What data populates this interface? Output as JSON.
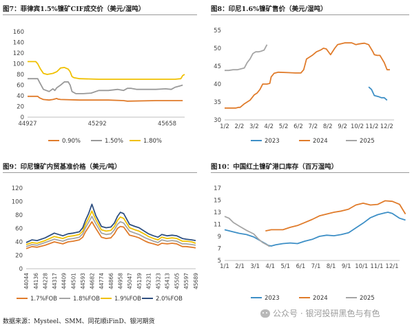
{
  "panels": [
    {
      "title": "图7：菲律宾1.5%镍矿CIF成交价（美元/湿吨）",
      "chart_data": {
        "type": "line",
        "y_ticks": [
          "160",
          "140",
          "120",
          "100",
          "80",
          "60",
          "40",
          "20",
          "0"
        ],
        "x_ticks": [
          "44927",
          "45292",
          "45658"
        ],
        "ylim": [
          0,
          160
        ],
        "xlim": [
          44927,
          45750
        ],
        "series": [
          {
            "name": "0.90%",
            "color": "#E07B2A",
            "x": [
              44927,
              44980,
              44990,
              45010,
              45040,
              45060,
              45080,
              45085,
              45100,
              45200,
              45300,
              45350,
              45430,
              45450,
              45600,
              45700,
              45740
            ],
            "y": [
              39,
              39,
              36,
              33,
              32,
              33,
              35,
              34,
              33,
              32,
              32,
              32,
              31,
              30,
              31,
              31,
              31
            ]
          },
          {
            "name": "1.50%",
            "color": "#999999",
            "x": [
              44927,
              44980,
              44990,
              45010,
              45040,
              45060,
              45070,
              45080,
              45100,
              45120,
              45140,
              45150,
              45160,
              45180,
              45220,
              45260,
              45300,
              45350,
              45400,
              45430,
              45450,
              45470,
              45500,
              45550,
              45600,
              45650,
              45680,
              45700,
              45720,
              45740
            ],
            "y": [
              72,
              72,
              65,
              52,
              48,
              53,
              50,
              55,
              60,
              66,
              66,
              60,
              48,
              44,
              44,
              45,
              50,
              50,
              52,
              50,
              54,
              54,
              52,
              52,
              52,
              53,
              52,
              56,
              58,
              60
            ]
          },
          {
            "name": "1.80%",
            "color": "#F0C000",
            "x": [
              44927,
              44970,
              44980,
              44995,
              45010,
              45030,
              45060,
              45080,
              45100,
              45120,
              45140,
              45150,
              45160,
              45170,
              45200,
              45300,
              45400,
              45500,
              45600,
              45700,
              45730,
              45740,
              45750
            ],
            "y": [
              104,
              104,
              100,
              90,
              82,
              80,
              82,
              85,
              92,
              93,
              90,
              85,
              76,
              74,
              72,
              71,
              71,
              71,
              71,
              71,
              72,
              78,
              80
            ]
          }
        ]
      }
    },
    {
      "title": "图8：印尼1.6%镍矿售价（美元/湿吨）",
      "chart_data": {
        "type": "line",
        "y_ticks": [
          "55",
          "50",
          "45",
          "40",
          "35",
          "30"
        ],
        "x_ticks": [
          "1/2",
          "2/2",
          "3/2",
          "4/2",
          "5/2",
          "6/2",
          "7/2",
          "8/2",
          "9/2",
          "10/2",
          "11/2",
          "12/2"
        ],
        "ylim": [
          30,
          55
        ],
        "xlim": [
          0,
          12
        ],
        "series": [
          {
            "name": "2023",
            "color": "#3D8FC6",
            "x": [
              10.2,
              10.4,
              10.6,
              10.9,
              11.1,
              11.3,
              11.5
            ],
            "y": [
              39.2,
              38.5,
              36.8,
              36.5,
              36.2,
              36.2,
              35.5
            ]
          },
          {
            "name": "2024",
            "color": "#E07B2A",
            "x": [
              0,
              0.4,
              0.8,
              1.0,
              1.1,
              1.4,
              1.6,
              1.8,
              2.1,
              2.3,
              2.5,
              2.7,
              2.8,
              3.0,
              3.2,
              3.3,
              3.5,
              3.8,
              4.5,
              5.0,
              5.4,
              5.6,
              5.8,
              6.0,
              6.2,
              6.5,
              6.8,
              7.0,
              7.2,
              7.5,
              7.8,
              8.0,
              8.2,
              8.5,
              8.7,
              9.0,
              9.3,
              9.5,
              9.7,
              9.9,
              10.2,
              10.5,
              10.6,
              10.8,
              11.0,
              11.3,
              11.5,
              11.7
            ],
            "y": [
              33.3,
              33.3,
              33.3,
              33.5,
              33.5,
              34.5,
              35,
              35.5,
              37,
              37.5,
              38.5,
              40,
              40,
              40,
              40.2,
              42,
              43,
              43.3,
              43.2,
              43.1,
              43.1,
              44,
              47,
              47.5,
              48,
              49,
              49.5,
              50,
              49.8,
              48.2,
              50,
              51,
              51.2,
              51.5,
              51.5,
              51.5,
              51.0,
              51.2,
              51.3,
              51.4,
              51.0,
              49.0,
              48.2,
              48.0,
              48.0,
              46.0,
              44.0,
              44.0
            ]
          },
          {
            "name": "2025",
            "color": "#A5A5A5",
            "x": [
              0,
              0.3,
              0.6,
              0.9,
              1.1,
              1.4,
              1.6,
              1.8,
              2.0,
              2.2,
              2.4,
              2.6,
              2.8,
              3.0
            ],
            "y": [
              43.8,
              43.8,
              44.0,
              44.0,
              44.2,
              44.5,
              46,
              47,
              48.5,
              49,
              49.0,
              49.2,
              49.5,
              51.0
            ]
          }
        ]
      }
    },
    {
      "title": "图9：印尼镍矿内贸基准价格（美元/吨）",
      "chart_data": {
        "type": "line",
        "y_ticks": [
          "120",
          "100",
          "80",
          "60",
          "40",
          "20",
          "0"
        ],
        "x_ticks": [
          "44044",
          "44136",
          "44228",
          "44317",
          "44409",
          "44501",
          "44593",
          "44682",
          "44774",
          "44866",
          "44958",
          "45047",
          "45139",
          "45231",
          "45323",
          "45413",
          "45505",
          "45597",
          "45689"
        ],
        "ylim": [
          0,
          120
        ],
        "xlim": [
          44044,
          45689
        ],
        "series": [
          {
            "name": "1.7%FOB",
            "color": "#E07B2A",
            "x": [
              44044,
              44100,
              44150,
              44228,
              44317,
              44400,
              44450,
              44501,
              44560,
              44593,
              44620,
              44650,
              44682,
              44720,
              44774,
              44820,
              44866,
              44900,
              44930,
              44958,
              44990,
              45047,
              45100,
              45139,
              45200,
              45231,
              45280,
              45323,
              45360,
              45413,
              45460,
              45505,
              45560,
              45597,
              45650,
              45689
            ],
            "y": [
              30,
              33,
              32,
              35,
              40,
              37,
              40,
              41,
              43,
              47,
              55,
              62,
              70,
              60,
              47,
              45,
              46,
              52,
              60,
              63,
              62,
              50,
              48,
              46,
              41,
              39,
              37,
              35,
              38,
              37,
              38,
              37,
              33,
              33,
              32,
              31
            ]
          },
          {
            "name": "1.8%FOB",
            "color": "#A5A5A5",
            "x": [
              44044,
              44100,
              44150,
              44228,
              44317,
              44400,
              44450,
              44501,
              44560,
              44593,
              44620,
              44650,
              44682,
              44720,
              44774,
              44820,
              44866,
              44900,
              44930,
              44958,
              44990,
              45047,
              45100,
              45139,
              45200,
              45231,
              45280,
              45323,
              45360,
              45413,
              45460,
              45505,
              45560,
              45597,
              45650,
              45689
            ],
            "y": [
              33,
              36,
              35,
              39,
              44,
              41,
              44,
              45,
              47,
              52,
              61,
              69,
              78,
              67,
              53,
              51,
              52,
              58,
              66,
              70,
              68,
              56,
              53,
              51,
              46,
              44,
              41,
              39,
              43,
              41,
              42,
              41,
              37,
              37,
              36,
              35
            ]
          },
          {
            "name": "1.9%FOB",
            "color": "#F0C000",
            "x": [
              44044,
              44100,
              44150,
              44228,
              44317,
              44400,
              44450,
              44501,
              44560,
              44593,
              44620,
              44650,
              44682,
              44720,
              44774,
              44820,
              44866,
              44900,
              44930,
              44958,
              44990,
              45047,
              45100,
              45139,
              45200,
              45231,
              45280,
              45323,
              45360,
              45413,
              45460,
              45505,
              45560,
              45597,
              45650,
              45689
            ],
            "y": [
              36,
              39,
              38,
              42,
              48,
              45,
              48,
              49,
              51,
              56,
              66,
              75,
              86,
              73,
              58,
              56,
              57,
              63,
              72,
              77,
              75,
              61,
              58,
              56,
              51,
              48,
              45,
              43,
              47,
              45,
              46,
              45,
              41,
              41,
              40,
              38
            ]
          },
          {
            "name": "2.0%FOB",
            "color": "#2E4F80",
            "x": [
              44044,
              44100,
              44150,
              44228,
              44317,
              44400,
              44450,
              44501,
              44560,
              44593,
              44620,
              44650,
              44682,
              44720,
              44774,
              44820,
              44866,
              44900,
              44930,
              44958,
              44990,
              45047,
              45100,
              45139,
              45200,
              45231,
              45280,
              45323,
              45360,
              45413,
              45460,
              45505,
              45560,
              45597,
              45650,
              45689
            ],
            "y": [
              39,
              43,
              42,
              46,
              53,
              49,
              52,
              53,
              55,
              61,
              72,
              82,
              96,
              79,
              63,
              61,
              62,
              68,
              78,
              84,
              82,
              66,
              63,
              61,
              55,
              52,
              49,
              47,
              51,
              49,
              50,
              49,
              45,
              44,
              43,
              42
            ]
          }
        ]
      }
    },
    {
      "title": "图10：中国红土镍矿港口库存（百万湿吨）",
      "chart_data": {
        "type": "line",
        "y_ticks": [
          "17",
          "15",
          "13",
          "11",
          "9",
          "7",
          "5"
        ],
        "x_ticks": [
          "1/1",
          "2/1",
          "3/1",
          "4/1",
          "5/1",
          "6/1",
          "7/1",
          "8/1",
          "9/1",
          "10/1",
          "11/1",
          "12/1"
        ],
        "ylim": [
          5,
          17
        ],
        "xlim": [
          0,
          12
        ],
        "series": [
          {
            "name": "2023",
            "color": "#3D8FC6",
            "x": [
              0,
              0.5,
              1,
              1.5,
              2,
              2.5,
              2.8,
              3.0,
              3.2,
              3.5,
              4,
              4.5,
              5,
              5.5,
              6,
              6.5,
              7,
              7.5,
              8,
              8.5,
              9,
              9.5,
              10,
              10.5,
              11,
              11.2,
              11.5,
              12,
              12.4
            ],
            "y": [
              10.1,
              9.8,
              9.5,
              9.3,
              8.9,
              8.2,
              7.8,
              7.5,
              7.4,
              7.6,
              7.8,
              7.9,
              7.8,
              8.2,
              8.5,
              9,
              9.2,
              9.1,
              9.3,
              9.6,
              10.4,
              11.2,
              12.1,
              12.6,
              12.9,
              13.0,
              12.8,
              12.0,
              11.7
            ]
          },
          {
            "name": "2024",
            "color": "#E07B2A",
            "x": [
              2.8,
              3.0,
              3.2,
              3.5,
              4,
              4.5,
              5,
              5.5,
              6,
              6.5,
              7,
              7.5,
              8,
              8.5,
              9,
              9.5,
              10,
              10.5,
              11,
              11.5,
              12,
              12.4
            ],
            "y": [
              9.9,
              10.0,
              10.1,
              10.1,
              10.1,
              10.5,
              10.8,
              11.3,
              11.8,
              12.4,
              12.7,
              13.0,
              13.2,
              13.5,
              14.2,
              14.5,
              14.2,
              14.3,
              14.9,
              14.8,
              14.3,
              12.7
            ]
          },
          {
            "name": "2025",
            "color": "#A5A5A5",
            "x": [
              0,
              0.3,
              0.6,
              1.0,
              1.5,
              2,
              2.3,
              2.6,
              2.9,
              3.1
            ],
            "y": [
              12.3,
              12.0,
              11.3,
              10.7,
              10.0,
              9.4,
              8.6,
              8.0,
              7.6,
              7.3
            ]
          }
        ]
      }
    }
  ],
  "footer": {
    "source": "数据来源：Mysteel、SMM、同花顺iFinD、银河期货",
    "watermark": "公众号 · 银河投研黑色与有色"
  }
}
